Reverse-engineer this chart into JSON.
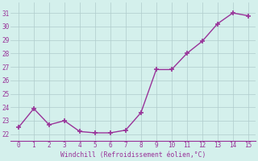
{
  "x": [
    0,
    1,
    2,
    3,
    4,
    5,
    6,
    7,
    8,
    9,
    10,
    11,
    12,
    13,
    14,
    15
  ],
  "y": [
    22.5,
    23.9,
    22.7,
    23.0,
    22.2,
    22.1,
    22.1,
    22.3,
    23.6,
    26.8,
    26.8,
    28.0,
    28.9,
    30.2,
    31.0,
    30.8
  ],
  "line_color": "#993399",
  "marker": "+",
  "marker_size": 5,
  "line_width": 1.0,
  "xlabel": "Windchill (Refroidissement éolien,°C)",
  "ylabel": "",
  "xlim": [
    -0.5,
    15.5
  ],
  "ylim": [
    21.5,
    31.8
  ],
  "yticks": [
    22,
    23,
    24,
    25,
    26,
    27,
    28,
    29,
    30,
    31
  ],
  "xticks": [
    0,
    1,
    2,
    3,
    4,
    5,
    6,
    7,
    8,
    9,
    10,
    11,
    12,
    13,
    14,
    15
  ],
  "bg_color": "#d4f0ec",
  "grid_color": "#b0cccc",
  "tick_color": "#993399",
  "label_color": "#993399",
  "line_style": "-"
}
